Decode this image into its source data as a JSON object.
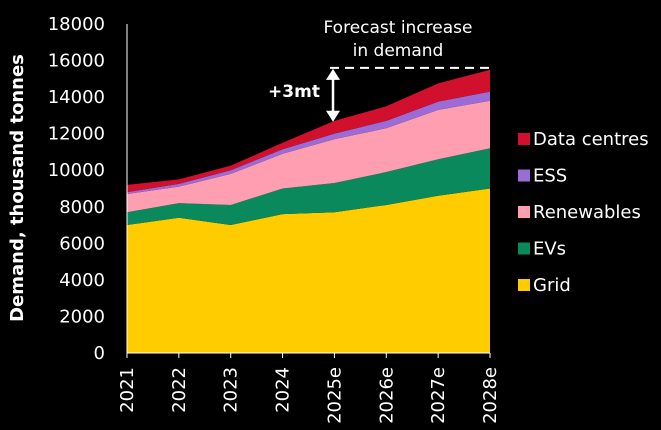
{
  "chart_data": {
    "type": "area",
    "stacked": true,
    "title": "",
    "xlabel": "",
    "ylabel": "Demand, thousand tonnes",
    "x": [
      "2021",
      "2022",
      "2023",
      "2024",
      "2025e",
      "2026e",
      "2027e",
      "2028e"
    ],
    "ylim": [
      0,
      18000
    ],
    "yticks": [
      "0",
      "2000",
      "4000",
      "6000",
      "8000",
      "10000",
      "12000",
      "14000",
      "16000",
      "18000"
    ],
    "grid": false,
    "legend_position": "right",
    "series": [
      {
        "name": "Grid",
        "color": "#FFCC00",
        "values": [
          7000,
          7400,
          7000,
          7600,
          7700,
          8100,
          8600,
          9000
        ]
      },
      {
        "name": "EVs",
        "color": "#0A8A5C",
        "values": [
          700,
          800,
          1100,
          1400,
          1600,
          1800,
          2000,
          2200
        ]
      },
      {
        "name": "Renewables",
        "color": "#FF9EB0",
        "values": [
          1000,
          900,
          1700,
          1900,
          2400,
          2400,
          2700,
          2600
        ]
      },
      {
        "name": "ESS",
        "color": "#9B6BD6",
        "values": [
          100,
          150,
          200,
          250,
          300,
          400,
          450,
          500
        ]
      },
      {
        "name": "Data centres",
        "color": "#D0102D",
        "values": [
          400,
          250,
          250,
          350,
          700,
          800,
          1000,
          1200
        ]
      }
    ],
    "annotations": {
      "forecast_line1": "Forecast increase",
      "forecast_line2": "in demand",
      "delta_label": "+3mt",
      "forecast_level": 15600,
      "base_level": 12600
    }
  }
}
